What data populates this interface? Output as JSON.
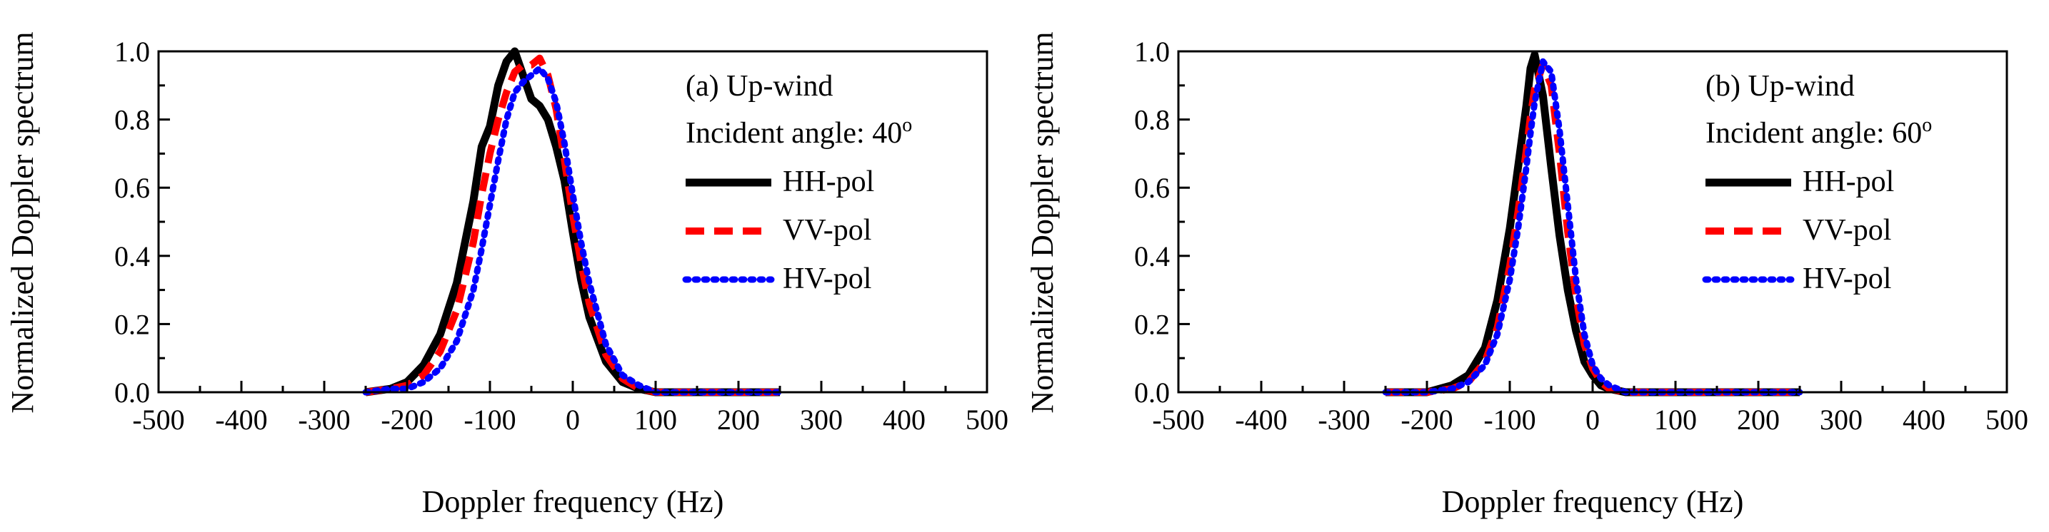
{
  "chart_data": [
    {
      "type": "line",
      "panel_id": "a",
      "annotation": "(a) Up-wind",
      "incident_angle_label": "Incident angle: 40",
      "degree_symbol": "o",
      "xlabel": "Doppler frequency (Hz)",
      "ylabel": "Normalized Doppler spectrum",
      "xlim": [
        -500,
        500
      ],
      "ylim": [
        0,
        1.0
      ],
      "xticks": [
        -500,
        -400,
        -300,
        -200,
        -100,
        0,
        100,
        200,
        300,
        400,
        500
      ],
      "yticks": [
        0.0,
        0.2,
        0.4,
        0.6,
        0.8,
        1.0
      ],
      "xtick_labels": [
        "-500",
        "-400",
        "-300",
        "-200",
        "-100",
        "0",
        "100",
        "200",
        "300",
        "400",
        "500"
      ],
      "ytick_labels": [
        "0.0",
        "0.2",
        "0.4",
        "0.6",
        "0.8",
        "1.0"
      ],
      "legend_position": "right",
      "series": [
        {
          "name": "HH-pol",
          "color": "#000000",
          "style": "solid",
          "x": [
            -250,
            -220,
            -200,
            -180,
            -160,
            -140,
            -120,
            -110,
            -100,
            -90,
            -80,
            -70,
            -60,
            -50,
            -40,
            -30,
            -20,
            -10,
            0,
            10,
            20,
            40,
            60,
            80,
            100,
            150,
            200,
            250
          ],
          "y": [
            0.0,
            0.01,
            0.03,
            0.08,
            0.17,
            0.32,
            0.56,
            0.72,
            0.78,
            0.9,
            0.97,
            1.0,
            0.93,
            0.86,
            0.84,
            0.8,
            0.72,
            0.62,
            0.47,
            0.33,
            0.22,
            0.09,
            0.03,
            0.01,
            0.0,
            0.0,
            0.0,
            0.0
          ]
        },
        {
          "name": "VV-pol",
          "color": "#ff0000",
          "style": "dashed",
          "x": [
            -250,
            -220,
            -200,
            -180,
            -160,
            -140,
            -120,
            -110,
            -100,
            -90,
            -80,
            -70,
            -60,
            -50,
            -40,
            -30,
            -20,
            -10,
            0,
            10,
            20,
            40,
            60,
            80,
            100,
            150,
            200,
            250
          ],
          "y": [
            0.0,
            0.01,
            0.02,
            0.05,
            0.12,
            0.24,
            0.44,
            0.58,
            0.7,
            0.8,
            0.88,
            0.94,
            0.96,
            0.96,
            0.98,
            0.93,
            0.83,
            0.68,
            0.52,
            0.38,
            0.26,
            0.11,
            0.04,
            0.01,
            0.0,
            0.0,
            0.0,
            0.0
          ]
        },
        {
          "name": "HV-pol",
          "color": "#0000ff",
          "style": "dotted",
          "x": [
            -250,
            -220,
            -200,
            -180,
            -160,
            -140,
            -120,
            -110,
            -100,
            -90,
            -80,
            -70,
            -60,
            -50,
            -40,
            -30,
            -20,
            -10,
            0,
            10,
            20,
            40,
            60,
            80,
            100,
            150,
            200,
            250
          ],
          "y": [
            0.0,
            0.01,
            0.01,
            0.03,
            0.07,
            0.15,
            0.3,
            0.42,
            0.55,
            0.68,
            0.8,
            0.88,
            0.91,
            0.93,
            0.95,
            0.92,
            0.85,
            0.73,
            0.58,
            0.44,
            0.32,
            0.14,
            0.05,
            0.02,
            0.0,
            0.0,
            0.0,
            0.0
          ]
        }
      ]
    },
    {
      "type": "line",
      "panel_id": "b",
      "annotation": "(b) Up-wind",
      "incident_angle_label": "Incident angle: 60",
      "degree_symbol": "o",
      "xlabel": "Doppler frequency (Hz)",
      "ylabel": "Normalized Doppler spectrum",
      "xlim": [
        -500,
        500
      ],
      "ylim": [
        0,
        1.0
      ],
      "xticks": [
        -500,
        -400,
        -300,
        -200,
        -100,
        0,
        100,
        200,
        300,
        400,
        500
      ],
      "yticks": [
        0.0,
        0.2,
        0.4,
        0.6,
        0.8,
        1.0
      ],
      "xtick_labels": [
        "-500",
        "-400",
        "-300",
        "-200",
        "-100",
        "0",
        "100",
        "200",
        "300",
        "400",
        "500"
      ],
      "ytick_labels": [
        "0.0",
        "0.2",
        "0.4",
        "0.6",
        "0.8",
        "1.0"
      ],
      "legend_position": "right",
      "series": [
        {
          "name": "HH-pol",
          "color": "#000000",
          "style": "solid",
          "x": [
            -250,
            -200,
            -170,
            -150,
            -130,
            -115,
            -100,
            -90,
            -80,
            -75,
            -70,
            -60,
            -50,
            -40,
            -30,
            -20,
            -10,
            0,
            10,
            20,
            40,
            60,
            100,
            150,
            200,
            250
          ],
          "y": [
            0.0,
            0.0,
            0.02,
            0.05,
            0.13,
            0.27,
            0.48,
            0.66,
            0.84,
            0.95,
            0.99,
            0.87,
            0.66,
            0.46,
            0.3,
            0.18,
            0.09,
            0.05,
            0.02,
            0.01,
            0.0,
            0.0,
            0.0,
            0.0,
            0.0,
            0.0
          ]
        },
        {
          "name": "VV-pol",
          "color": "#ff0000",
          "style": "dashed",
          "x": [
            -250,
            -200,
            -170,
            -150,
            -130,
            -115,
            -100,
            -90,
            -80,
            -75,
            -70,
            -60,
            -50,
            -40,
            -30,
            -20,
            -10,
            0,
            10,
            20,
            40,
            60,
            100,
            150,
            200,
            250
          ],
          "y": [
            0.0,
            0.0,
            0.01,
            0.03,
            0.09,
            0.19,
            0.37,
            0.53,
            0.71,
            0.81,
            0.89,
            0.96,
            0.9,
            0.7,
            0.47,
            0.28,
            0.14,
            0.07,
            0.03,
            0.01,
            0.0,
            0.0,
            0.0,
            0.0,
            0.0,
            0.0
          ]
        },
        {
          "name": "HV-pol",
          "color": "#0000ff",
          "style": "dotted",
          "x": [
            -250,
            -200,
            -170,
            -150,
            -130,
            -115,
            -100,
            -90,
            -80,
            -75,
            -70,
            -60,
            -50,
            -40,
            -30,
            -20,
            -10,
            0,
            10,
            20,
            40,
            60,
            100,
            150,
            200,
            250
          ],
          "y": [
            0.0,
            0.0,
            0.01,
            0.03,
            0.08,
            0.17,
            0.33,
            0.48,
            0.66,
            0.76,
            0.85,
            0.97,
            0.94,
            0.77,
            0.55,
            0.33,
            0.17,
            0.08,
            0.04,
            0.02,
            0.0,
            0.0,
            0.0,
            0.0,
            0.0,
            0.0
          ]
        }
      ]
    }
  ]
}
